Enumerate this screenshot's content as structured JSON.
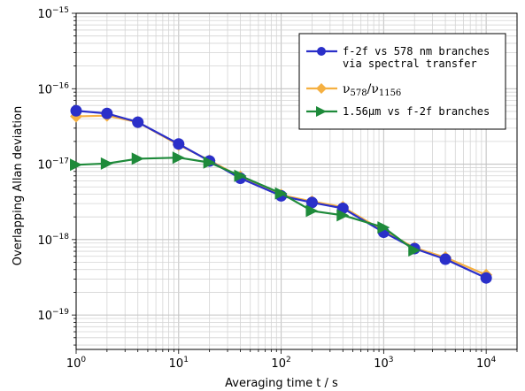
{
  "chart_data": {
    "type": "line",
    "xlabel": "Averaging time t / s",
    "ylabel": "Overlapping Allan deviation",
    "xscale": "log",
    "yscale": "log",
    "xlim": [
      1,
      20000
    ],
    "ylim": [
      3.5e-20,
      1e-15
    ],
    "grid": true,
    "legend_position": "top-right",
    "x_ticks": [
      {
        "value": 1,
        "base": "10",
        "exp": "0"
      },
      {
        "value": 10,
        "base": "10",
        "exp": "1"
      },
      {
        "value": 100,
        "base": "10",
        "exp": "2"
      },
      {
        "value": 1000,
        "base": "10",
        "exp": "3"
      },
      {
        "value": 10000,
        "base": "10",
        "exp": "4"
      }
    ],
    "y_ticks": [
      {
        "value": 1e-15,
        "base": "10",
        "exp": "−15"
      },
      {
        "value": 1e-16,
        "base": "10",
        "exp": "−16"
      },
      {
        "value": 1e-17,
        "base": "10",
        "exp": "−17"
      },
      {
        "value": 1e-18,
        "base": "10",
        "exp": "−18"
      },
      {
        "value": 1e-19,
        "base": "10",
        "exp": "−19"
      }
    ],
    "series": [
      {
        "name": "ν578/ν1156",
        "legend_main": "ν",
        "legend_sub1": "578",
        "legend_slash": "/ν",
        "legend_sub2": "1156",
        "color": "#f5b041",
        "marker": "diamond",
        "x": [
          1,
          2,
          4,
          10,
          20,
          40,
          100,
          200,
          400,
          1000,
          2000,
          4000,
          10000
        ],
        "y": [
          4.3e-17,
          4.4e-17,
          3.6e-17,
          1.8e-17,
          1.12e-17,
          6.8e-18,
          3.9e-18,
          3.2e-18,
          2.7e-18,
          1.3e-18,
          7.8e-19,
          5.8e-19,
          3.4e-19
        ]
      },
      {
        "name": "f-2f vs 578 nm branches via spectral transfer",
        "legend_line1": "f-2f vs 578 nm branches",
        "legend_line2": "via spectral transfer",
        "color": "#2a2fc9",
        "marker": "circle",
        "x": [
          1,
          2,
          4,
          10,
          20,
          40,
          100,
          200,
          400,
          1000,
          2000,
          4000,
          10000
        ],
        "y": [
          5.1e-17,
          4.7e-17,
          3.6e-17,
          1.85e-17,
          1.1e-17,
          6.5e-18,
          3.8e-18,
          3.1e-18,
          2.6e-18,
          1.25e-18,
          7.6e-19,
          5.5e-19,
          3.1e-19
        ]
      },
      {
        "name": "1.56μm vs f-2f branches",
        "legend_line1": "1.56μm vs f-2f branches",
        "color": "#1e8a3a",
        "marker": "triangle-right",
        "x": [
          1,
          2,
          4,
          10,
          20,
          40,
          100,
          200,
          400,
          1000,
          2000
        ],
        "y": [
          9.8e-18,
          1.02e-17,
          1.18e-17,
          1.22e-17,
          1.05e-17,
          7e-18,
          4.1e-18,
          2.4e-18,
          2.1e-18,
          1.45e-18,
          7.2e-19
        ]
      }
    ]
  }
}
